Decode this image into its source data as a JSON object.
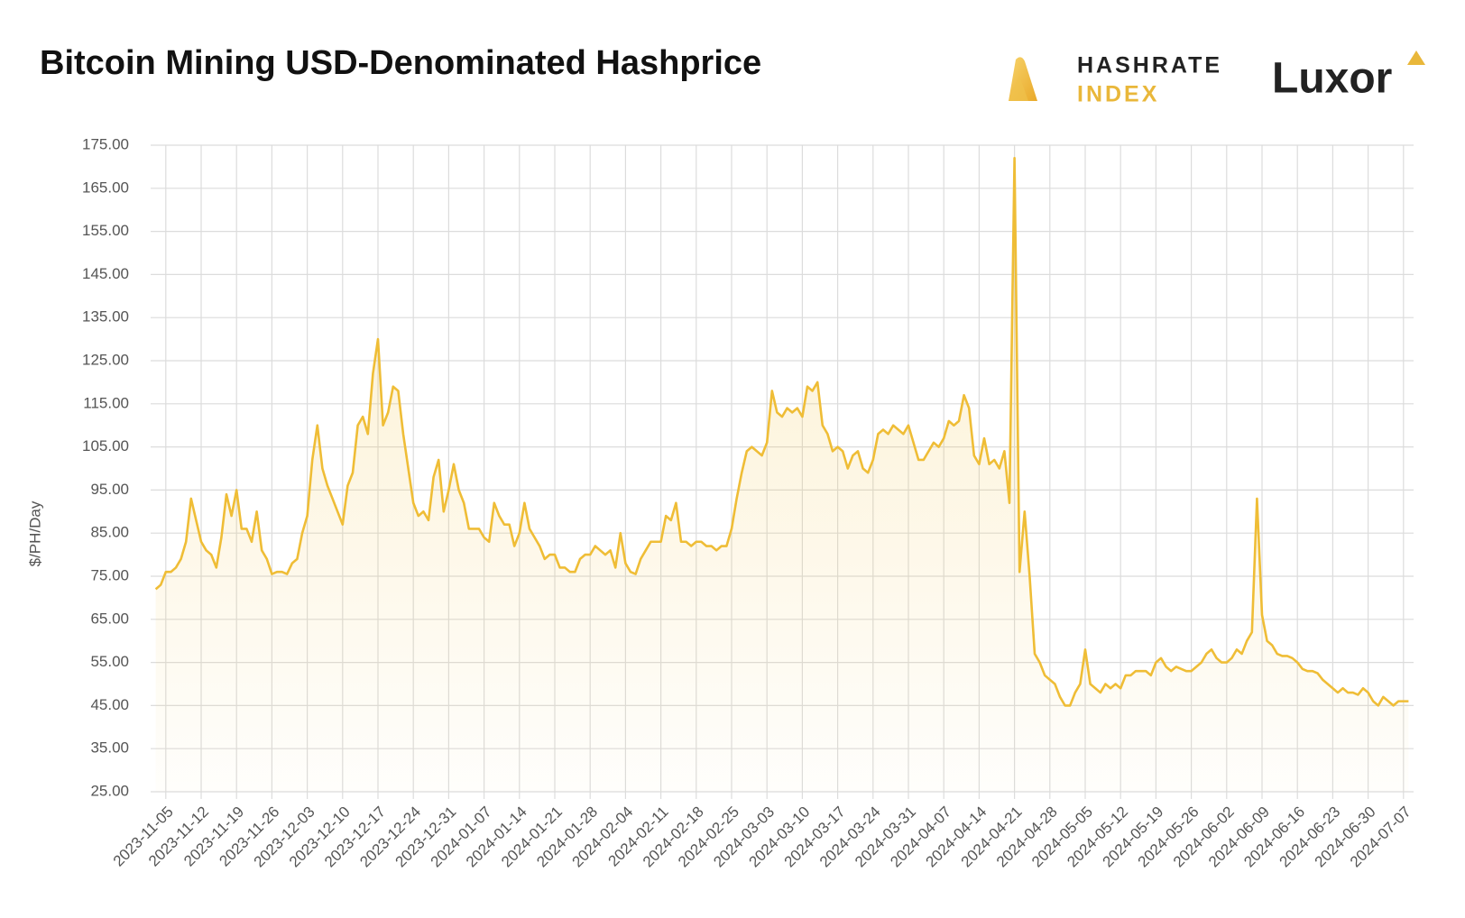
{
  "brand": {
    "hashrate": "HASHRATE",
    "index": "INDEX",
    "luxor": "Luxor"
  },
  "chart_data": {
    "type": "line",
    "title": "Bitcoin Mining USD-Denominated Hashprice",
    "ylabel": "$/PH/Day",
    "color": "#efbd36",
    "grid": true,
    "xlim": [
      "2023-11-02",
      "2024-07-09"
    ],
    "ylim": [
      25,
      175
    ],
    "yticks": [
      {
        "value": 25,
        "label": "25.00"
      },
      {
        "value": 35,
        "label": "35.00"
      },
      {
        "value": 45,
        "label": "45.00"
      },
      {
        "value": 55,
        "label": "55.00"
      },
      {
        "value": 65,
        "label": "65.00"
      },
      {
        "value": 75,
        "label": "75.00"
      },
      {
        "value": 85,
        "label": "85.00"
      },
      {
        "value": 95,
        "label": "95.00"
      },
      {
        "value": 105,
        "label": "105.00"
      },
      {
        "value": 115,
        "label": "115.00"
      },
      {
        "value": 125,
        "label": "125.00"
      },
      {
        "value": 135,
        "label": "135.00"
      },
      {
        "value": 145,
        "label": "145.00"
      },
      {
        "value": 155,
        "label": "155.00"
      },
      {
        "value": 165,
        "label": "165.00"
      },
      {
        "value": 175,
        "label": "175.00"
      }
    ],
    "xticks": [
      "2023-11-05",
      "2023-11-12",
      "2023-11-19",
      "2023-11-26",
      "2023-12-03",
      "2023-12-10",
      "2023-12-17",
      "2023-12-24",
      "2023-12-31",
      "2024-01-07",
      "2024-01-14",
      "2024-01-21",
      "2024-01-28",
      "2024-02-04",
      "2024-02-11",
      "2024-02-18",
      "2024-02-25",
      "2024-03-03",
      "2024-03-10",
      "2024-03-17",
      "2024-03-24",
      "2024-03-31",
      "2024-04-07",
      "2024-04-14",
      "2024-04-21",
      "2024-04-28",
      "2024-05-05",
      "2024-05-12",
      "2024-05-19",
      "2024-05-26",
      "2024-06-02",
      "2024-06-09",
      "2024-06-16",
      "2024-06-23",
      "2024-06-30",
      "2024-07-07"
    ],
    "x": [
      "2023-11-03",
      "2023-11-04",
      "2023-11-05",
      "2023-11-06",
      "2023-11-07",
      "2023-11-08",
      "2023-11-09",
      "2023-11-10",
      "2023-11-11",
      "2023-11-12",
      "2023-11-13",
      "2023-11-14",
      "2023-11-15",
      "2023-11-16",
      "2023-11-17",
      "2023-11-18",
      "2023-11-19",
      "2023-11-20",
      "2023-11-21",
      "2023-11-22",
      "2023-11-23",
      "2023-11-24",
      "2023-11-25",
      "2023-11-26",
      "2023-11-27",
      "2023-11-28",
      "2023-11-29",
      "2023-11-30",
      "2023-12-01",
      "2023-12-02",
      "2023-12-03",
      "2023-12-04",
      "2023-12-05",
      "2023-12-06",
      "2023-12-07",
      "2023-12-08",
      "2023-12-09",
      "2023-12-10",
      "2023-12-11",
      "2023-12-12",
      "2023-12-13",
      "2023-12-14",
      "2023-12-15",
      "2023-12-16",
      "2023-12-17",
      "2023-12-18",
      "2023-12-19",
      "2023-12-20",
      "2023-12-21",
      "2023-12-22",
      "2023-12-23",
      "2023-12-24",
      "2023-12-25",
      "2023-12-26",
      "2023-12-27",
      "2023-12-28",
      "2023-12-29",
      "2023-12-30",
      "2023-12-31",
      "2024-01-01",
      "2024-01-02",
      "2024-01-03",
      "2024-01-04",
      "2024-01-05",
      "2024-01-06",
      "2024-01-07",
      "2024-01-08",
      "2024-01-09",
      "2024-01-10",
      "2024-01-11",
      "2024-01-12",
      "2024-01-13",
      "2024-01-14",
      "2024-01-15",
      "2024-01-16",
      "2024-01-17",
      "2024-01-18",
      "2024-01-19",
      "2024-01-20",
      "2024-01-21",
      "2024-01-22",
      "2024-01-23",
      "2024-01-24",
      "2024-01-25",
      "2024-01-26",
      "2024-01-27",
      "2024-01-28",
      "2024-01-29",
      "2024-01-30",
      "2024-01-31",
      "2024-02-01",
      "2024-02-02",
      "2024-02-03",
      "2024-02-04",
      "2024-02-05",
      "2024-02-06",
      "2024-02-07",
      "2024-02-08",
      "2024-02-09",
      "2024-02-10",
      "2024-02-11",
      "2024-02-12",
      "2024-02-13",
      "2024-02-14",
      "2024-02-15",
      "2024-02-16",
      "2024-02-17",
      "2024-02-18",
      "2024-02-19",
      "2024-02-20",
      "2024-02-21",
      "2024-02-22",
      "2024-02-23",
      "2024-02-24",
      "2024-02-25",
      "2024-02-26",
      "2024-02-27",
      "2024-02-28",
      "2024-02-29",
      "2024-03-01",
      "2024-03-02",
      "2024-03-03",
      "2024-03-04",
      "2024-03-05",
      "2024-03-06",
      "2024-03-07",
      "2024-03-08",
      "2024-03-09",
      "2024-03-10",
      "2024-03-11",
      "2024-03-12",
      "2024-03-13",
      "2024-03-14",
      "2024-03-15",
      "2024-03-16",
      "2024-03-17",
      "2024-03-18",
      "2024-03-19",
      "2024-03-20",
      "2024-03-21",
      "2024-03-22",
      "2024-03-23",
      "2024-03-24",
      "2024-03-25",
      "2024-03-26",
      "2024-03-27",
      "2024-03-28",
      "2024-03-29",
      "2024-03-30",
      "2024-03-31",
      "2024-04-01",
      "2024-04-02",
      "2024-04-03",
      "2024-04-04",
      "2024-04-05",
      "2024-04-06",
      "2024-04-07",
      "2024-04-08",
      "2024-04-09",
      "2024-04-10",
      "2024-04-11",
      "2024-04-12",
      "2024-04-13",
      "2024-04-14",
      "2024-04-15",
      "2024-04-16",
      "2024-04-17",
      "2024-04-18",
      "2024-04-19",
      "2024-04-20",
      "2024-04-21",
      "2024-04-22",
      "2024-04-23",
      "2024-04-24",
      "2024-04-25",
      "2024-04-26",
      "2024-04-27",
      "2024-04-28",
      "2024-04-29",
      "2024-04-30",
      "2024-05-01",
      "2024-05-02",
      "2024-05-03",
      "2024-05-04",
      "2024-05-05",
      "2024-05-06",
      "2024-05-07",
      "2024-05-08",
      "2024-05-09",
      "2024-05-10",
      "2024-05-11",
      "2024-05-12",
      "2024-05-13",
      "2024-05-14",
      "2024-05-15",
      "2024-05-16",
      "2024-05-17",
      "2024-05-18",
      "2024-05-19",
      "2024-05-20",
      "2024-05-21",
      "2024-05-22",
      "2024-05-23",
      "2024-05-24",
      "2024-05-25",
      "2024-05-26",
      "2024-05-27",
      "2024-05-28",
      "2024-05-29",
      "2024-05-30",
      "2024-05-31",
      "2024-06-01",
      "2024-06-02",
      "2024-06-03",
      "2024-06-04",
      "2024-06-05",
      "2024-06-06",
      "2024-06-07",
      "2024-06-08",
      "2024-06-09",
      "2024-06-10",
      "2024-06-11",
      "2024-06-12",
      "2024-06-13",
      "2024-06-14",
      "2024-06-15",
      "2024-06-16",
      "2024-06-17",
      "2024-06-18",
      "2024-06-19",
      "2024-06-20",
      "2024-06-21",
      "2024-06-22",
      "2024-06-23",
      "2024-06-24",
      "2024-06-25",
      "2024-06-26",
      "2024-06-27",
      "2024-06-28",
      "2024-06-29",
      "2024-06-30",
      "2024-07-01",
      "2024-07-02",
      "2024-07-03",
      "2024-07-04",
      "2024-07-05",
      "2024-07-06",
      "2024-07-07",
      "2024-07-08"
    ],
    "values": [
      72,
      73,
      76,
      76,
      77,
      79,
      83,
      93,
      88,
      83,
      81,
      80,
      77,
      84,
      94,
      89,
      95,
      86,
      86,
      83,
      90,
      81,
      79,
      75.5,
      76,
      76,
      75.5,
      78,
      79,
      85,
      89,
      102,
      110,
      100,
      96,
      93,
      90,
      87,
      96,
      99,
      110,
      112,
      108,
      122,
      130,
      110,
      113,
      119,
      118,
      108,
      100,
      92,
      89,
      90,
      88,
      98,
      102,
      90,
      95,
      101,
      95,
      92,
      86,
      86,
      86,
      84,
      83,
      92,
      89,
      87,
      87,
      82,
      85,
      92,
      86,
      84,
      82,
      79,
      80,
      80,
      77,
      77,
      76,
      76,
      79,
      80,
      80,
      82,
      81,
      80,
      81,
      77,
      85,
      78,
      76,
      75.5,
      79,
      81,
      83,
      83,
      83,
      89,
      88,
      92,
      83,
      83,
      82,
      83,
      83,
      82,
      82,
      81,
      82,
      82,
      86,
      93,
      99,
      104,
      105,
      104,
      103,
      106,
      118,
      113,
      112,
      114,
      113,
      114,
      112,
      119,
      118,
      120,
      110,
      108,
      104,
      105,
      104,
      100,
      103,
      104,
      100,
      99,
      102,
      108,
      109,
      108,
      110,
      109,
      108,
      110,
      106,
      102,
      102,
      104,
      106,
      105,
      107,
      111,
      110,
      111,
      117,
      114,
      103,
      101,
      107,
      101,
      102,
      100,
      104,
      92,
      172,
      76,
      90,
      75,
      57,
      55,
      52,
      51,
      50,
      47,
      45,
      45,
      48,
      50,
      58,
      50,
      49,
      48,
      50,
      49,
      50,
      49,
      52,
      52,
      53,
      53,
      53,
      52,
      55,
      56,
      54,
      53,
      54,
      53.5,
      53,
      53,
      54,
      55,
      57,
      58,
      56,
      55,
      55,
      56,
      58,
      57,
      60,
      62,
      93,
      66,
      60,
      59,
      57,
      56.5,
      56.5,
      56,
      55,
      53.5,
      53,
      53,
      52.5,
      51,
      50,
      49,
      48,
      49,
      48,
      48,
      47.5,
      49,
      48,
      46,
      45,
      47,
      46,
      45,
      46,
      46,
      46
    ]
  }
}
